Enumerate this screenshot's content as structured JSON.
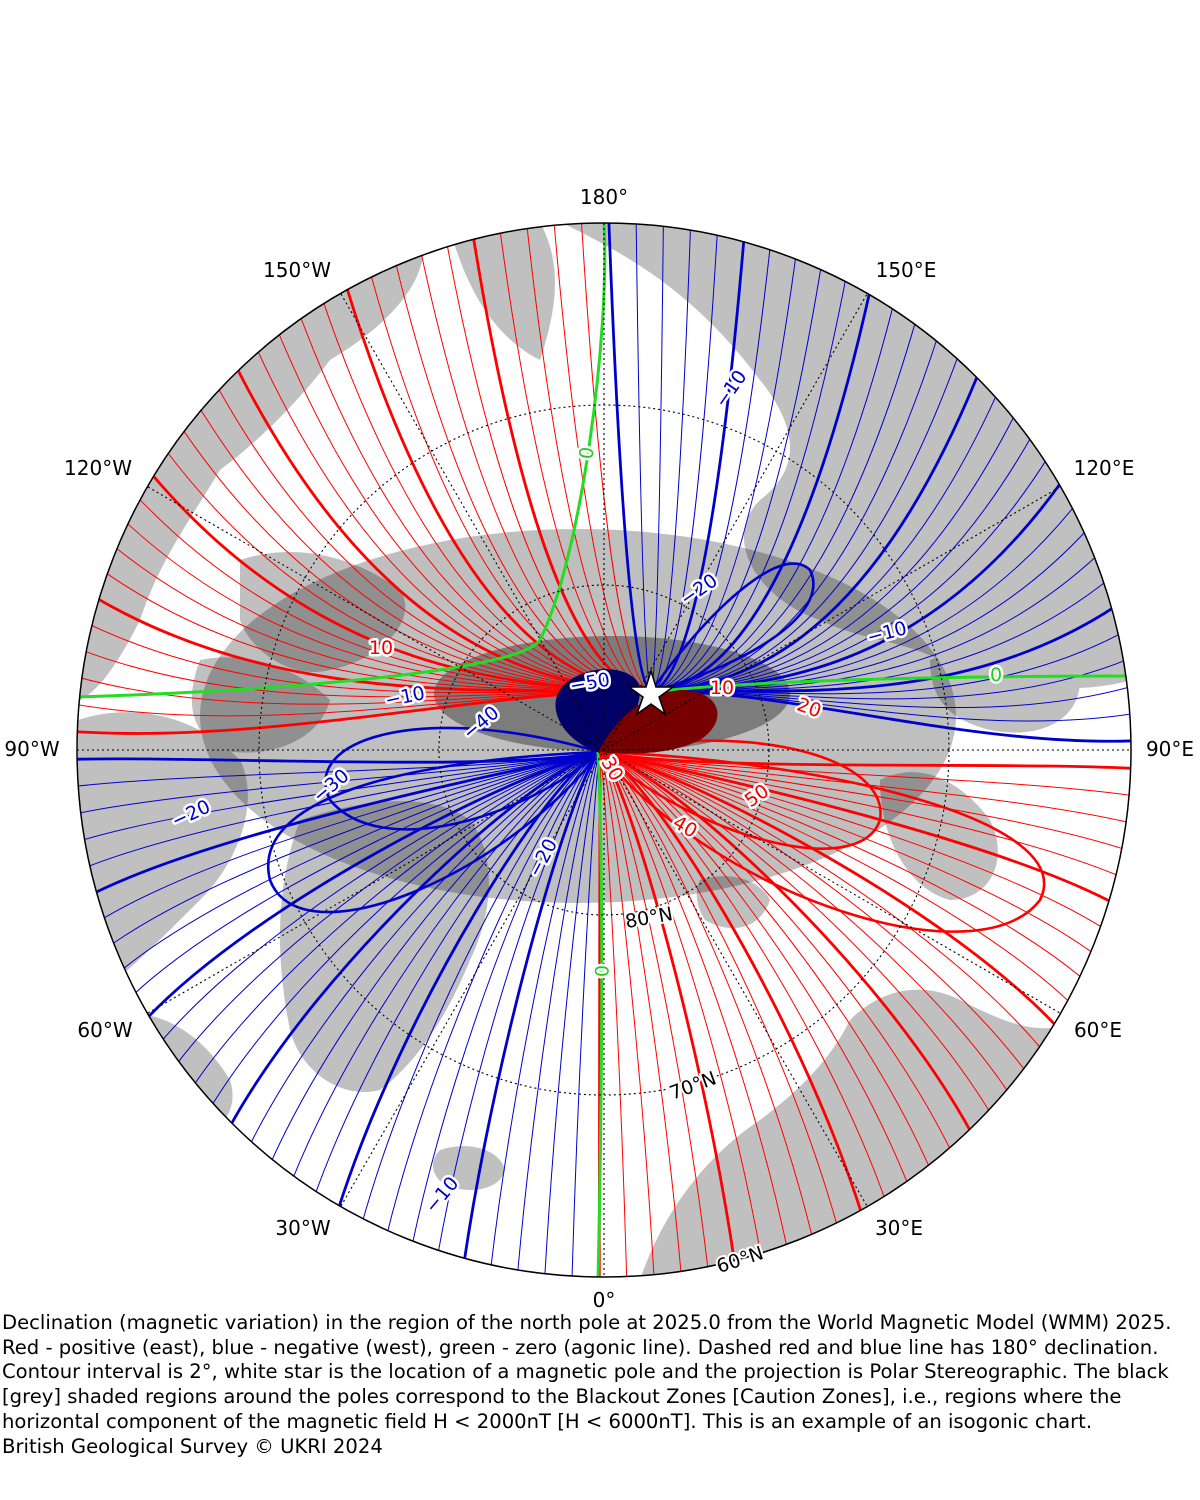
{
  "map": {
    "projection": "Polar Stereographic (north)",
    "longitude_labels": {
      "top": "180°",
      "top_left": "150°W",
      "top_right": "150°E",
      "upper_left": "120°W",
      "upper_right": "120°E",
      "left": "90°W",
      "right": "90°E",
      "lower_left": "60°W",
      "lower_right": "60°E",
      "bottom_left": "30°W",
      "bottom_right": "30°E",
      "bottom": "0°"
    },
    "latitude_labels": {
      "lat80": "80°N",
      "lat70": "70°N",
      "lat60": "60°N"
    },
    "contour_labels": {
      "zero_top": "0",
      "zero_right": "0",
      "zero_bottom": "0",
      "neg10_top": "−10",
      "neg10_right": "−10",
      "neg10_left": "−10",
      "neg10_bottom": "−10",
      "neg20_top": "−20",
      "neg20_left": "−20",
      "neg20_bottom": "−20",
      "neg30_left": "−30",
      "neg40": "−40",
      "neg50": "−50",
      "pos10_left": "10",
      "pos10_right": "10",
      "pos20": "20",
      "pos30": "30",
      "pos40": "40",
      "pos50": "50"
    },
    "colors": {
      "positive": "#ff0000",
      "negative": "#0000cc",
      "zero": "#22dd22",
      "land": "#c0c0c0",
      "blackout_zone": "#000000",
      "caution_zone": "#808080",
      "pole_marker": "#ffffff"
    },
    "pole_marker_icon": "white-star",
    "contour_interval_deg": 2
  },
  "caption": {
    "text": "Declination (magnetic variation) in the region of the north pole at 2025.0 from the World Magnetic Model (WMM) 2025. Red - positive (east), blue - negative (west), green - zero (agonic line). Dashed red and blue line has 180° declination. Contour interval is 2°, white star is the location of a magnetic pole and the projection is Polar Stereographic. The black [grey] shaded regions around the poles correspond to the Blackout Zones [Caution Zones], i.e., regions where the horizontal component of the magnetic field H < 2000nT [H < 6000nT]. This is an example of an isogonic chart.",
    "credit": "British Geological Survey © UKRI 2024"
  }
}
